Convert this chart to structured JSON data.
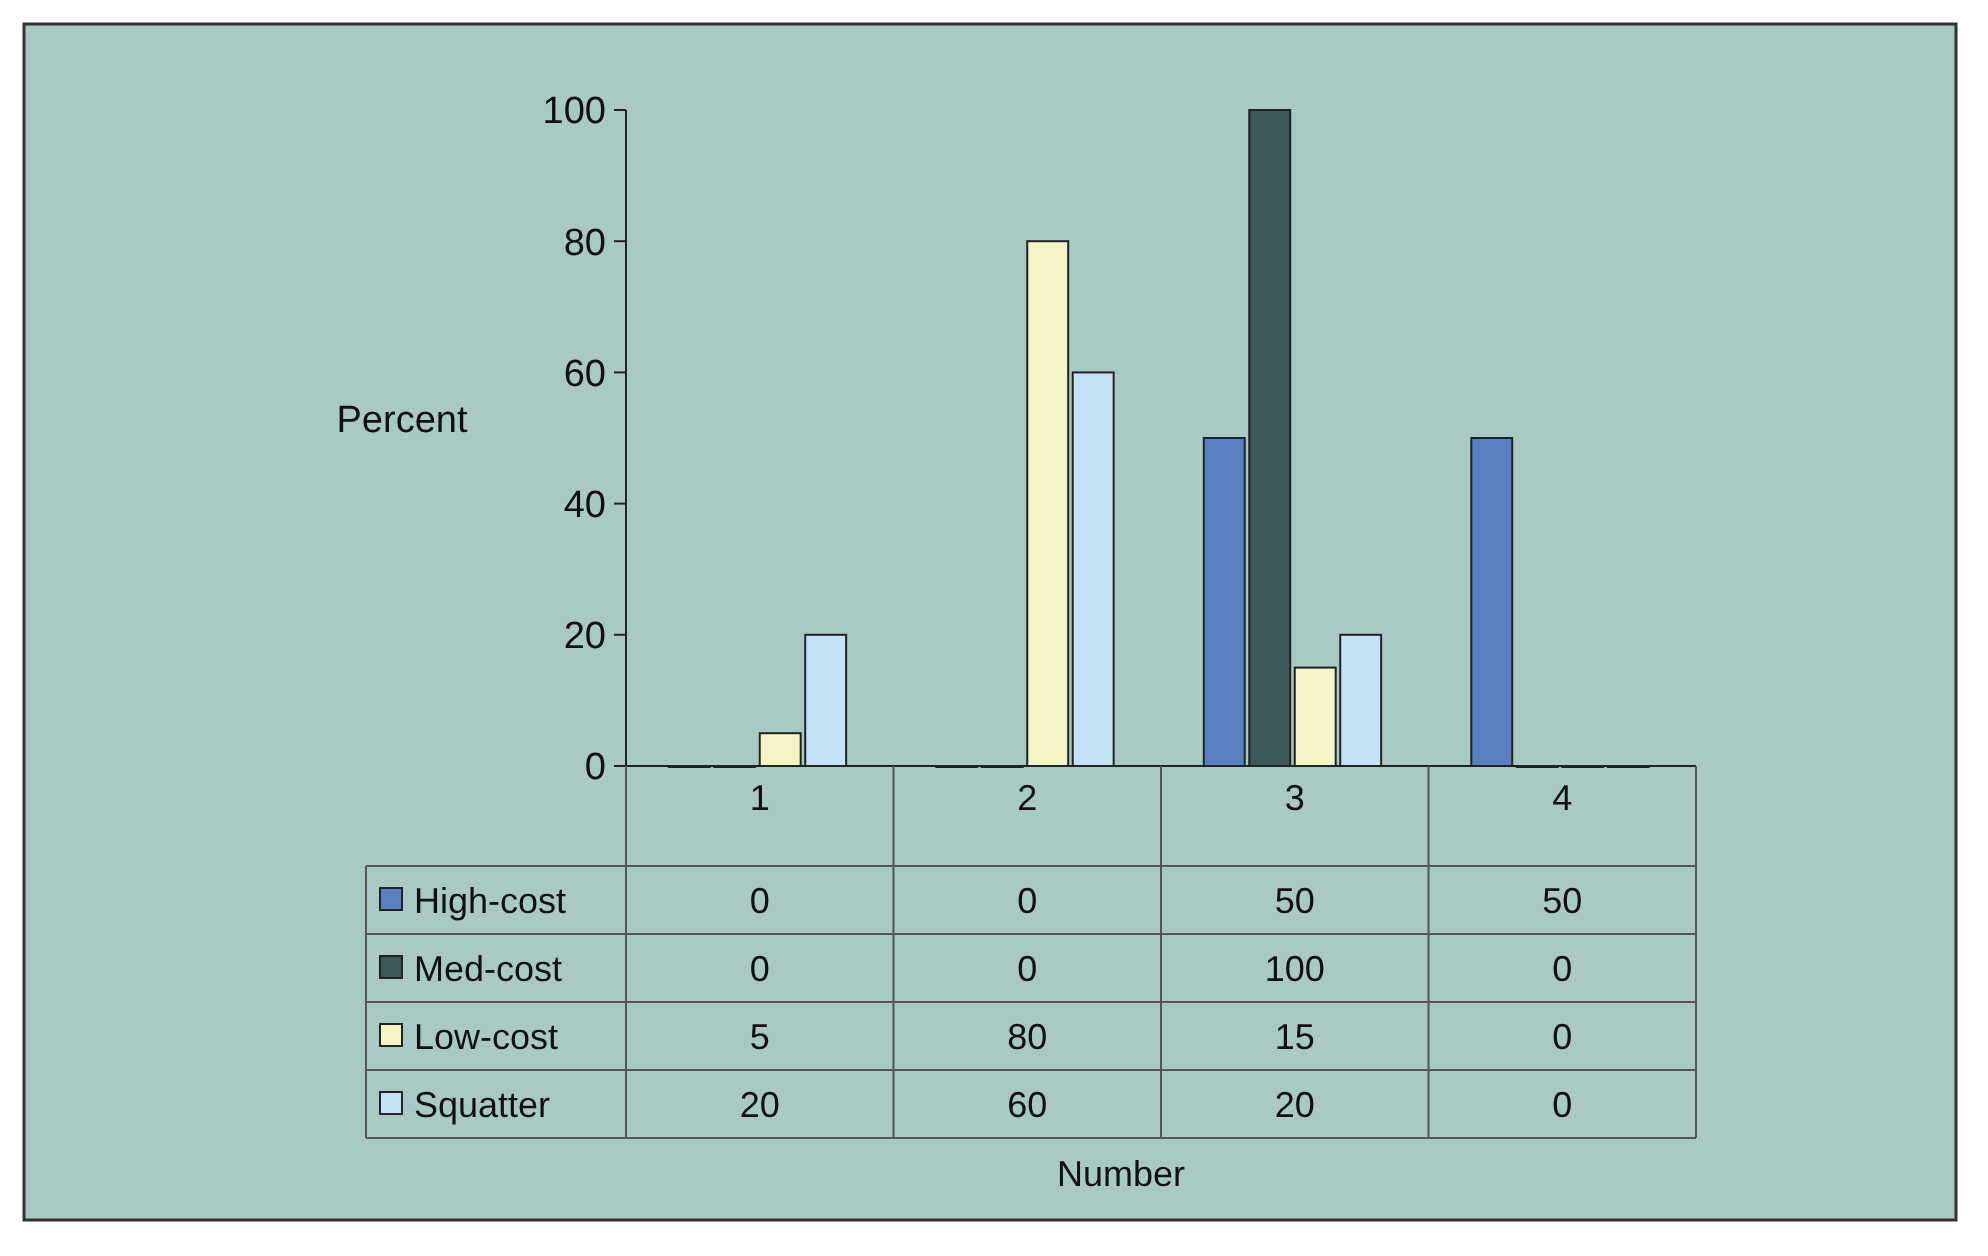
{
  "chart_data": {
    "type": "bar",
    "annotations": [
      "Number"
    ],
    "ylabel": "Percent",
    "categories": [
      "1",
      "2",
      "3",
      "4"
    ],
    "series": [
      {
        "name": "High-cost",
        "color": "#5a80c4",
        "values": [
          0,
          0,
          50,
          50
        ]
      },
      {
        "name": "Med-cost",
        "color": "#3c5858",
        "values": [
          0,
          0,
          100,
          0
        ]
      },
      {
        "name": "Low-cost",
        "color": "#f4f4c4",
        "values": [
          5,
          80,
          15,
          0
        ]
      },
      {
        "name": "Squatter",
        "color": "#c4e2f6",
        "values": [
          20,
          60,
          20,
          0
        ]
      }
    ],
    "ylim": [
      0,
      100
    ],
    "yticks": [
      0,
      20,
      40,
      60,
      80,
      100
    ],
    "grid": false,
    "legend": "bottom",
    "data_labels": true
  }
}
